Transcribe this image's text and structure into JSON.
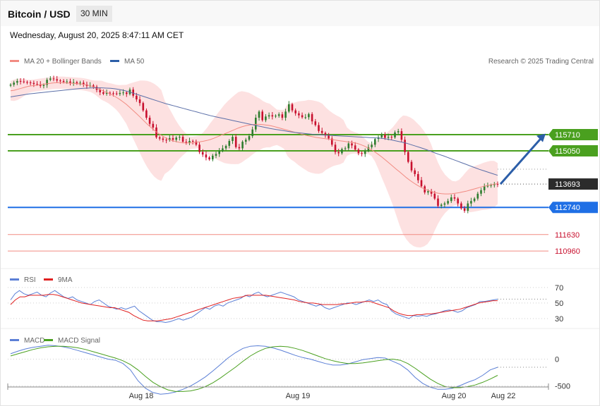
{
  "header": {
    "title": "Bitcoin / USD",
    "interval": "30 MIN",
    "datetime": "Wednesday, August 20, 2025 8:47:11 AM CET"
  },
  "credit": "Research © 2025 Trading Central",
  "colors": {
    "up": "#2e7d2e",
    "down": "#c8102e",
    "band": "#fde1e1",
    "ma20": "#f28b82",
    "ma50": "#5b6fa8",
    "resistance": "#4aa01f",
    "support": "#1f6fe5",
    "target": "#f28b82",
    "arrow": "#2c5ea8",
    "rsi": "#5b7fd6",
    "rsi_ma": "#e02020",
    "macd": "#5b7fd6",
    "macd_signal": "#4aa01f"
  },
  "chart_data": [
    {
      "type": "candlestick",
      "legend": [
        {
          "name": "MA 20 + Bollinger Bands",
          "color": "#f28b82"
        },
        {
          "name": "MA 50",
          "color": "#2c5ea8"
        }
      ],
      "x_ticks": [
        "Aug 18",
        "Aug 19",
        "Aug 20",
        "Aug 22"
      ],
      "y_range": [
        110300,
        118300
      ],
      "levels": [
        {
          "value": 115710,
          "label": "115710",
          "kind": "resistance"
        },
        {
          "value": 115050,
          "label": "115050",
          "kind": "resistance"
        },
        {
          "value": 113693,
          "label": "113693",
          "kind": "current"
        },
        {
          "value": 112740,
          "label": "112740",
          "kind": "support"
        },
        {
          "value": 111630,
          "label": "111630",
          "kind": "target"
        },
        {
          "value": 110960,
          "label": "110960",
          "kind": "target"
        }
      ],
      "closes": [
        117750,
        117830,
        117900,
        117880,
        117860,
        117840,
        117820,
        117780,
        117760,
        117700,
        117740,
        117950,
        118000,
        117970,
        117920,
        117900,
        117860,
        117880,
        117820,
        117850,
        117800,
        117830,
        117760,
        117700,
        117720,
        117660,
        117540,
        117440,
        117380,
        117420,
        117400,
        117390,
        117370,
        117410,
        117430,
        117370,
        117550,
        117300,
        117150,
        117000,
        116700,
        116400,
        116150,
        116000,
        115600,
        115550,
        115500,
        115480,
        115570,
        115500,
        115590,
        115620,
        115420,
        115380,
        115450,
        115430,
        115300,
        115000,
        114900,
        114780,
        114700,
        114850,
        114920,
        115050,
        115150,
        115250,
        115450,
        115620,
        115200,
        115150,
        115420,
        115500,
        115650,
        115920,
        116400,
        116650,
        116300,
        116450,
        116500,
        116450,
        116480,
        116540,
        116400,
        116650,
        116950,
        116700,
        116580,
        116500,
        116420,
        116420,
        116550,
        116250,
        116100,
        115860,
        115780,
        115700,
        115550,
        115300,
        115000,
        114950,
        115120,
        115150,
        115350,
        115270,
        115100,
        114950,
        114920,
        115050,
        115200,
        115300,
        115530,
        115600,
        115700,
        115580,
        115620,
        115600,
        115800,
        115850,
        115500,
        115000,
        114600,
        114250,
        114100,
        113850,
        113600,
        113350,
        113400,
        113300,
        113100,
        112800,
        112850,
        112900,
        113000,
        113150,
        113100,
        112900,
        112700,
        112600,
        112900,
        113000,
        113100,
        113300,
        113440,
        113600,
        113620,
        113650,
        113700,
        113690
      ],
      "ma20": [
        117500,
        117520,
        117560,
        117600,
        117640,
        117680,
        117700,
        117720,
        117740,
        117760,
        117780,
        117800,
        117820,
        117830,
        117830,
        117830,
        117820,
        117810,
        117800,
        117790,
        117780,
        117760,
        117730,
        117690,
        117640,
        117580,
        117520,
        117460,
        117400,
        117330,
        117250,
        117160,
        117060,
        116950,
        116820,
        116690,
        116560,
        116420,
        116280,
        116140,
        116010,
        115890,
        115780,
        115680,
        115600,
        115530,
        115470,
        115430,
        115400,
        115380,
        115370,
        115370,
        115380,
        115400,
        115420,
        115440,
        115470,
        115510,
        115560,
        115620,
        115680,
        115740,
        115800,
        115860,
        115920,
        115980,
        116030,
        116070,
        116100,
        116120,
        116130,
        116130,
        116120,
        116100,
        116080,
        116050,
        116010,
        115970,
        115930,
        115890,
        115850,
        115810,
        115770,
        115730,
        115690,
        115660,
        115630,
        115600,
        115580,
        115560,
        115540,
        115520,
        115500,
        115480,
        115460,
        115440,
        115420,
        115400,
        115380,
        115350,
        115300,
        115240,
        115170,
        115090,
        115000,
        114900,
        114790,
        114670,
        114550,
        114430,
        114310,
        114190,
        114070,
        113950,
        113840,
        113740,
        113650,
        113570,
        113500,
        113440,
        113390,
        113350,
        113320,
        113300,
        113290,
        113290,
        113300,
        113320,
        113340,
        113370,
        113400,
        113440,
        113480,
        113520,
        113560,
        113600,
        113630,
        113660,
        113690,
        113710
      ],
      "ma50": [
        117250,
        117280,
        117310,
        117340,
        117370,
        117390,
        117410,
        117430,
        117450,
        117470,
        117490,
        117510,
        117530,
        117550,
        117570,
        117590,
        117600,
        117610,
        117620,
        117620,
        117620,
        117610,
        117600,
        117580,
        117550,
        117510,
        117460,
        117400,
        117340,
        117280,
        117220,
        117160,
        117100,
        117040,
        116980,
        116930,
        116880,
        116830,
        116780,
        116730,
        116680,
        116630,
        116580,
        116530,
        116480,
        116440,
        116400,
        116360,
        116320,
        116280,
        116240,
        116200,
        116160,
        116120,
        116080,
        116040,
        116000,
        115960,
        115930,
        115900,
        115870,
        115840,
        115810,
        115790,
        115770,
        115750,
        115730,
        115710,
        115700,
        115690,
        115680,
        115670,
        115660,
        115650,
        115640,
        115630,
        115620,
        115610,
        115600,
        115590,
        115580,
        115570,
        115550,
        115520,
        115480,
        115440,
        115400,
        115360,
        115300,
        115240,
        115180,
        115120,
        115050,
        114980,
        114910,
        114850,
        114780,
        114710,
        114640,
        114570,
        114500,
        114430,
        114360,
        114290,
        114230,
        114170,
        114110,
        114050
      ]
    },
    {
      "type": "line",
      "legend": [
        {
          "name": "RSI",
          "color": "#5b7fd6"
        },
        {
          "name": "9MA",
          "color": "#e02020"
        }
      ],
      "y_range": [
        20,
        78
      ],
      "y_ticks": [
        70,
        50,
        30
      ],
      "series": [
        {
          "name": "RSI",
          "values": [
            54,
            62,
            66,
            62,
            60,
            62,
            64,
            60,
            58,
            63,
            66,
            62,
            58,
            56,
            58,
            54,
            52,
            50,
            48,
            52,
            54,
            50,
            46,
            44,
            42,
            44,
            42,
            44,
            46,
            40,
            36,
            32,
            28,
            26,
            26,
            25,
            26,
            28,
            30,
            28,
            30,
            32,
            36,
            40,
            44,
            42,
            46,
            48,
            46,
            50,
            52,
            54,
            56,
            60,
            58,
            62,
            64,
            60,
            58,
            60,
            62,
            64,
            62,
            60,
            58,
            54,
            52,
            50,
            48,
            46,
            48,
            44,
            42,
            44,
            46,
            48,
            50,
            50,
            48,
            50,
            52,
            54,
            52,
            54,
            50,
            48,
            40,
            36,
            34,
            32,
            30,
            34,
            33,
            34,
            33,
            35,
            36,
            38,
            40,
            41,
            40,
            38,
            40,
            44,
            46,
            48,
            52,
            52,
            53,
            54,
            55
          ]
        },
        {
          "name": "9MA",
          "values": [
            48,
            54,
            58,
            58,
            60,
            60,
            60,
            60,
            61,
            61,
            60,
            58,
            56,
            54,
            52,
            50,
            49,
            48,
            47,
            46,
            45,
            44,
            44,
            42,
            40,
            38,
            34,
            31,
            28,
            27,
            27,
            27,
            28,
            29,
            30,
            32,
            34,
            36,
            38,
            40,
            42,
            44,
            46,
            48,
            50,
            52,
            54,
            56,
            57,
            58,
            60,
            60,
            60,
            60,
            60,
            59,
            58,
            57,
            56,
            55,
            54,
            52,
            51,
            50,
            50,
            49,
            48,
            48,
            48,
            48,
            49,
            49,
            50,
            51,
            51,
            52,
            52,
            50,
            48,
            46,
            44,
            40,
            37,
            35,
            34,
            34,
            35,
            35,
            36,
            36,
            37,
            38,
            39,
            40,
            41,
            42,
            44,
            46,
            48,
            50,
            51,
            52,
            53,
            53
          ]
        }
      ]
    },
    {
      "type": "line",
      "legend": [
        {
          "name": "MACD",
          "color": "#5b7fd6"
        },
        {
          "name": "MACD Signal",
          "color": "#4aa01f"
        }
      ],
      "y_range": [
        -700,
        400
      ],
      "y_ticks": [
        0,
        -500
      ],
      "series": [
        {
          "name": "MACD",
          "values": [
            100,
            150,
            190,
            220,
            240,
            260,
            250,
            230,
            200,
            160,
            120,
            80,
            40,
            0,
            -20,
            -80,
            -200,
            -400,
            -540,
            -620,
            -650,
            -640,
            -610,
            -560,
            -500,
            -420,
            -330,
            -220,
            -100,
            20,
            120,
            200,
            240,
            250,
            240,
            210,
            170,
            120,
            70,
            30,
            0,
            -40,
            -80,
            -110,
            -110,
            -90,
            -50,
            -10,
            10,
            30,
            20,
            -40,
            -100,
            -200,
            -340,
            -450,
            -520,
            -560,
            -560,
            -540,
            -490,
            -430,
            -380,
            -300,
            -200,
            -150
          ]
        },
        {
          "name": "MACD Signal",
          "values": [
            60,
            100,
            140,
            180,
            210,
            230,
            240,
            240,
            230,
            210,
            180,
            140,
            100,
            60,
            20,
            -30,
            -100,
            -200,
            -320,
            -430,
            -510,
            -570,
            -600,
            -600,
            -590,
            -560,
            -510,
            -440,
            -350,
            -250,
            -150,
            -40,
            60,
            140,
            200,
            230,
            240,
            230,
            200,
            160,
            110,
            60,
            10,
            -30,
            -60,
            -80,
            -80,
            -70,
            -50,
            -30,
            -10,
            0,
            -20,
            -80,
            -170,
            -270,
            -370,
            -450,
            -510,
            -530,
            -530,
            -510,
            -480,
            -430,
            -370,
            -300
          ]
        }
      ]
    }
  ]
}
